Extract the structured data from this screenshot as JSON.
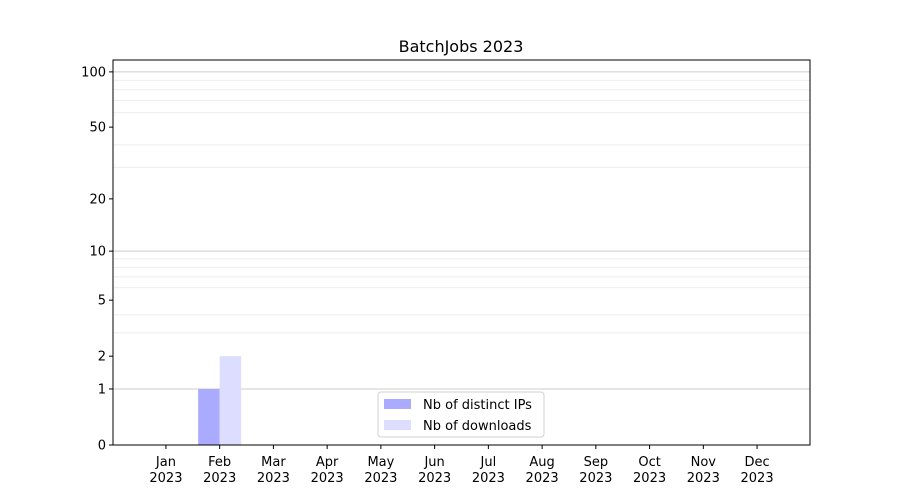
{
  "chart_data": {
    "type": "bar",
    "title": "BatchJobs 2023",
    "xlabel": "",
    "ylabel": "",
    "y_scale": "log(y+1)",
    "ylim": [
      0,
      116
    ],
    "y_ticks": [
      0,
      1,
      2,
      5,
      10,
      20,
      50,
      100
    ],
    "y_tick_labels": [
      "0",
      "1",
      "2",
      "5",
      "10",
      "20",
      "50",
      "100"
    ],
    "y_minor_grid": [
      3,
      4,
      6,
      7,
      8,
      9,
      30,
      40,
      60,
      70,
      80,
      90
    ],
    "grid": true,
    "categories": [
      [
        "Jan",
        "2023"
      ],
      [
        "Feb",
        "2023"
      ],
      [
        "Mar",
        "2023"
      ],
      [
        "Apr",
        "2023"
      ],
      [
        "May",
        "2023"
      ],
      [
        "Jun",
        "2023"
      ],
      [
        "Jul",
        "2023"
      ],
      [
        "Aug",
        "2023"
      ],
      [
        "Sep",
        "2023"
      ],
      [
        "Oct",
        "2023"
      ],
      [
        "Nov",
        "2023"
      ],
      [
        "Dec",
        "2023"
      ]
    ],
    "series": [
      {
        "name": "Nb of distinct IPs",
        "color": "#aaaaff",
        "values": [
          0,
          1,
          0,
          0,
          0,
          0,
          0,
          0,
          0,
          0,
          0,
          0
        ]
      },
      {
        "name": "Nb of downloads",
        "color": "#ddddff",
        "values": [
          0,
          2,
          0,
          0,
          0,
          0,
          0,
          0,
          0,
          0,
          0,
          0
        ]
      }
    ],
    "legend_position": "bottom-center"
  }
}
